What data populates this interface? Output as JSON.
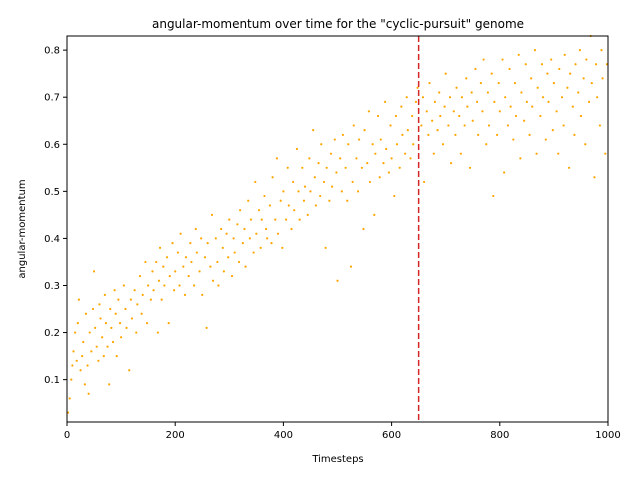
{
  "chart_data": {
    "type": "scatter",
    "title": "angular-momentum over time for the \"cyclic-pursuit\" genome",
    "xlabel": "Timesteps",
    "ylabel": "angular-momentum",
    "xlim": [
      0,
      1000
    ],
    "ylim": [
      0.01,
      0.83
    ],
    "x_ticks": [
      0,
      200,
      400,
      600,
      800,
      1000
    ],
    "x_tick_labels": [
      "0",
      "200",
      "400",
      "600",
      "800",
      "1000"
    ],
    "y_ticks": [
      0.1,
      0.2,
      0.3,
      0.4,
      0.5,
      0.6,
      0.7,
      0.8
    ],
    "y_tick_labels": [
      "0.1",
      "0.2",
      "0.3",
      "0.4",
      "0.5",
      "0.6",
      "0.7",
      "0.8"
    ],
    "grid": false,
    "point_color": "#ffa500",
    "vline": {
      "x": 650,
      "color": "#d62728",
      "style": "dashed"
    },
    "series": [
      {
        "values": [
          [
            2,
            0.03
          ],
          [
            5,
            0.06
          ],
          [
            8,
            0.1
          ],
          [
            10,
            0.13
          ],
          [
            12,
            0.16
          ],
          [
            15,
            0.2
          ],
          [
            18,
            0.14
          ],
          [
            20,
            0.22
          ],
          [
            22,
            0.27
          ],
          [
            25,
            0.12
          ],
          [
            28,
            0.15
          ],
          [
            30,
            0.18
          ],
          [
            33,
            0.09
          ],
          [
            35,
            0.24
          ],
          [
            38,
            0.13
          ],
          [
            40,
            0.07
          ],
          [
            42,
            0.2
          ],
          [
            45,
            0.16
          ],
          [
            48,
            0.25
          ],
          [
            50,
            0.33
          ],
          [
            52,
            0.21
          ],
          [
            55,
            0.17
          ],
          [
            58,
            0.14
          ],
          [
            60,
            0.26
          ],
          [
            62,
            0.23
          ],
          [
            65,
            0.19
          ],
          [
            68,
            0.15
          ],
          [
            70,
            0.28
          ],
          [
            72,
            0.22
          ],
          [
            75,
            0.17
          ],
          [
            78,
            0.09
          ],
          [
            80,
            0.25
          ],
          [
            82,
            0.21
          ],
          [
            85,
            0.18
          ],
          [
            88,
            0.29
          ],
          [
            90,
            0.24
          ],
          [
            92,
            0.15
          ],
          [
            95,
            0.27
          ],
          [
            98,
            0.22
          ],
          [
            100,
            0.19
          ],
          [
            105,
            0.3
          ],
          [
            108,
            0.25
          ],
          [
            110,
            0.21
          ],
          [
            115,
            0.12
          ],
          [
            118,
            0.27
          ],
          [
            120,
            0.23
          ],
          [
            125,
            0.29
          ],
          [
            128,
            0.2
          ],
          [
            130,
            0.26
          ],
          [
            135,
            0.32
          ],
          [
            138,
            0.24
          ],
          [
            140,
            0.28
          ],
          [
            145,
            0.35
          ],
          [
            148,
            0.22
          ],
          [
            150,
            0.3
          ],
          [
            155,
            0.27
          ],
          [
            158,
            0.33
          ],
          [
            160,
            0.29
          ],
          [
            165,
            0.35
          ],
          [
            168,
            0.2
          ],
          [
            170,
            0.31
          ],
          [
            172,
            0.38
          ],
          [
            175,
            0.27
          ],
          [
            178,
            0.34
          ],
          [
            180,
            0.3
          ],
          [
            185,
            0.36
          ],
          [
            188,
            0.22
          ],
          [
            190,
            0.32
          ],
          [
            195,
            0.39
          ],
          [
            198,
            0.29
          ],
          [
            200,
            0.33
          ],
          [
            205,
            0.37
          ],
          [
            208,
            0.3
          ],
          [
            210,
            0.41
          ],
          [
            215,
            0.34
          ],
          [
            218,
            0.28
          ],
          [
            220,
            0.36
          ],
          [
            225,
            0.32
          ],
          [
            228,
            0.39
          ],
          [
            230,
            0.35
          ],
          [
            235,
            0.3
          ],
          [
            238,
            0.42
          ],
          [
            240,
            0.37
          ],
          [
            245,
            0.33
          ],
          [
            248,
            0.4
          ],
          [
            250,
            0.28
          ],
          [
            255,
            0.36
          ],
          [
            258,
            0.21
          ],
          [
            260,
            0.39
          ],
          [
            265,
            0.34
          ],
          [
            268,
            0.45
          ],
          [
            270,
            0.31
          ],
          [
            275,
            0.4
          ],
          [
            278,
            0.35
          ],
          [
            280,
            0.3
          ],
          [
            285,
            0.42
          ],
          [
            288,
            0.38
          ],
          [
            290,
            0.33
          ],
          [
            295,
            0.41
          ],
          [
            298,
            0.36
          ],
          [
            300,
            0.44
          ],
          [
            305,
            0.32
          ],
          [
            308,
            0.4
          ],
          [
            310,
            0.37
          ],
          [
            315,
            0.43
          ],
          [
            318,
            0.35
          ],
          [
            320,
            0.46
          ],
          [
            325,
            0.39
          ],
          [
            328,
            0.42
          ],
          [
            330,
            0.34
          ],
          [
            335,
            0.48
          ],
          [
            338,
            0.4
          ],
          [
            340,
            0.44
          ],
          [
            345,
            0.37
          ],
          [
            348,
            0.52
          ],
          [
            350,
            0.41
          ],
          [
            355,
            0.46
          ],
          [
            358,
            0.38
          ],
          [
            360,
            0.44
          ],
          [
            365,
            0.49
          ],
          [
            368,
            0.42
          ],
          [
            370,
            0.4
          ],
          [
            375,
            0.47
          ],
          [
            378,
            0.39
          ],
          [
            380,
            0.53
          ],
          [
            385,
            0.44
          ],
          [
            388,
            0.57
          ],
          [
            390,
            0.41
          ],
          [
            395,
            0.48
          ],
          [
            398,
            0.38
          ],
          [
            400,
            0.5
          ],
          [
            405,
            0.44
          ],
          [
            408,
            0.55
          ],
          [
            410,
            0.47
          ],
          [
            415,
            0.42
          ],
          [
            418,
            0.52
          ],
          [
            420,
            0.46
          ],
          [
            425,
            0.59
          ],
          [
            428,
            0.5
          ],
          [
            430,
            0.44
          ],
          [
            435,
            0.55
          ],
          [
            438,
            0.48
          ],
          [
            440,
            0.51
          ],
          [
            445,
            0.45
          ],
          [
            448,
            0.57
          ],
          [
            450,
            0.5
          ],
          [
            455,
            0.63
          ],
          [
            458,
            0.53
          ],
          [
            460,
            0.47
          ],
          [
            465,
            0.56
          ],
          [
            468,
            0.49
          ],
          [
            470,
            0.6
          ],
          [
            475,
            0.52
          ],
          [
            478,
            0.38
          ],
          [
            480,
            0.55
          ],
          [
            485,
            0.48
          ],
          [
            488,
            0.58
          ],
          [
            490,
            0.51
          ],
          [
            495,
            0.61
          ],
          [
            498,
            0.54
          ],
          [
            500,
            0.31
          ],
          [
            505,
            0.57
          ],
          [
            508,
            0.5
          ],
          [
            510,
            0.62
          ],
          [
            515,
            0.55
          ],
          [
            518,
            0.48
          ],
          [
            520,
            0.6
          ],
          [
            525,
            0.34
          ],
          [
            528,
            0.52
          ],
          [
            530,
            0.64
          ],
          [
            535,
            0.57
          ],
          [
            538,
            0.5
          ],
          [
            540,
            0.61
          ],
          [
            545,
            0.55
          ],
          [
            548,
            0.42
          ],
          [
            550,
            0.63
          ],
          [
            555,
            0.56
          ],
          [
            558,
            0.67
          ],
          [
            560,
            0.52
          ],
          [
            565,
            0.6
          ],
          [
            568,
            0.45
          ],
          [
            570,
            0.58
          ],
          [
            575,
            0.66
          ],
          [
            578,
            0.53
          ],
          [
            580,
            0.61
          ],
          [
            585,
            0.56
          ],
          [
            588,
            0.69
          ],
          [
            590,
            0.59
          ],
          [
            595,
            0.54
          ],
          [
            598,
            0.64
          ],
          [
            600,
            0.57
          ],
          [
            605,
            0.49
          ],
          [
            608,
            0.66
          ],
          [
            610,
            0.6
          ],
          [
            615,
            0.55
          ],
          [
            618,
            0.68
          ],
          [
            620,
            0.62
          ],
          [
            625,
            0.58
          ],
          [
            628,
            0.7
          ],
          [
            630,
            0.63
          ],
          [
            635,
            0.57
          ],
          [
            638,
            0.66
          ],
          [
            640,
            0.6
          ],
          [
            645,
            0.69
          ],
          [
            648,
            0.72
          ],
          [
            655,
            0.64
          ],
          [
            658,
            0.7
          ],
          [
            660,
            0.52
          ],
          [
            665,
            0.67
          ],
          [
            668,
            0.62
          ],
          [
            670,
            0.73
          ],
          [
            675,
            0.65
          ],
          [
            678,
            0.58
          ],
          [
            680,
            0.69
          ],
          [
            685,
            0.63
          ],
          [
            688,
            0.71
          ],
          [
            690,
            0.66
          ],
          [
            695,
            0.6
          ],
          [
            698,
            0.68
          ],
          [
            700,
            0.75
          ],
          [
            705,
            0.64
          ],
          [
            708,
            0.7
          ],
          [
            710,
            0.56
          ],
          [
            715,
            0.67
          ],
          [
            718,
            0.62
          ],
          [
            720,
            0.72
          ],
          [
            725,
            0.66
          ],
          [
            728,
            0.58
          ],
          [
            730,
            0.7
          ],
          [
            735,
            0.64
          ],
          [
            738,
            0.74
          ],
          [
            740,
            0.68
          ],
          [
            745,
            0.55
          ],
          [
            748,
            0.71
          ],
          [
            750,
            0.65
          ],
          [
            755,
            0.76
          ],
          [
            758,
            0.69
          ],
          [
            760,
            0.62
          ],
          [
            765,
            0.73
          ],
          [
            768,
            0.67
          ],
          [
            770,
            0.78
          ],
          [
            775,
            0.6
          ],
          [
            778,
            0.71
          ],
          [
            780,
            0.64
          ],
          [
            785,
            0.75
          ],
          [
            788,
            0.49
          ],
          [
            790,
            0.69
          ],
          [
            795,
            0.62
          ],
          [
            798,
            0.73
          ],
          [
            800,
            0.67
          ],
          [
            805,
            0.78
          ],
          [
            808,
            0.54
          ],
          [
            810,
            0.7
          ],
          [
            815,
            0.64
          ],
          [
            818,
            0.76
          ],
          [
            820,
            0.68
          ],
          [
            825,
            0.61
          ],
          [
            828,
            0.73
          ],
          [
            830,
            0.66
          ],
          [
            835,
            0.79
          ],
          [
            838,
            0.57
          ],
          [
            840,
            0.71
          ],
          [
            845,
            0.65
          ],
          [
            848,
            0.77
          ],
          [
            850,
            0.69
          ],
          [
            855,
            0.62
          ],
          [
            858,
            0.74
          ],
          [
            860,
            0.68
          ],
          [
            865,
            0.8
          ],
          [
            868,
            0.58
          ],
          [
            870,
            0.72
          ],
          [
            875,
            0.66
          ],
          [
            878,
            0.77
          ],
          [
            880,
            0.7
          ],
          [
            885,
            0.61
          ],
          [
            888,
            0.75
          ],
          [
            890,
            0.69
          ],
          [
            895,
            0.78
          ],
          [
            898,
            0.63
          ],
          [
            900,
            0.73
          ],
          [
            905,
            0.67
          ],
          [
            908,
            0.58
          ],
          [
            910,
            0.76
          ],
          [
            915,
            0.7
          ],
          [
            918,
            0.64
          ],
          [
            920,
            0.79
          ],
          [
            925,
            0.72
          ],
          [
            928,
            0.55
          ],
          [
            930,
            0.75
          ],
          [
            935,
            0.68
          ],
          [
            938,
            0.62
          ],
          [
            940,
            0.77
          ],
          [
            945,
            0.71
          ],
          [
            948,
            0.8
          ],
          [
            950,
            0.66
          ],
          [
            955,
            0.74
          ],
          [
            958,
            0.6
          ],
          [
            960,
            0.78
          ],
          [
            965,
            0.69
          ],
          [
            968,
            0.83
          ],
          [
            970,
            0.73
          ],
          [
            975,
            0.53
          ],
          [
            978,
            0.77
          ],
          [
            980,
            0.7
          ],
          [
            985,
            0.64
          ],
          [
            988,
            0.8
          ],
          [
            990,
            0.74
          ],
          [
            995,
            0.58
          ],
          [
            998,
            0.77
          ]
        ]
      }
    ]
  }
}
